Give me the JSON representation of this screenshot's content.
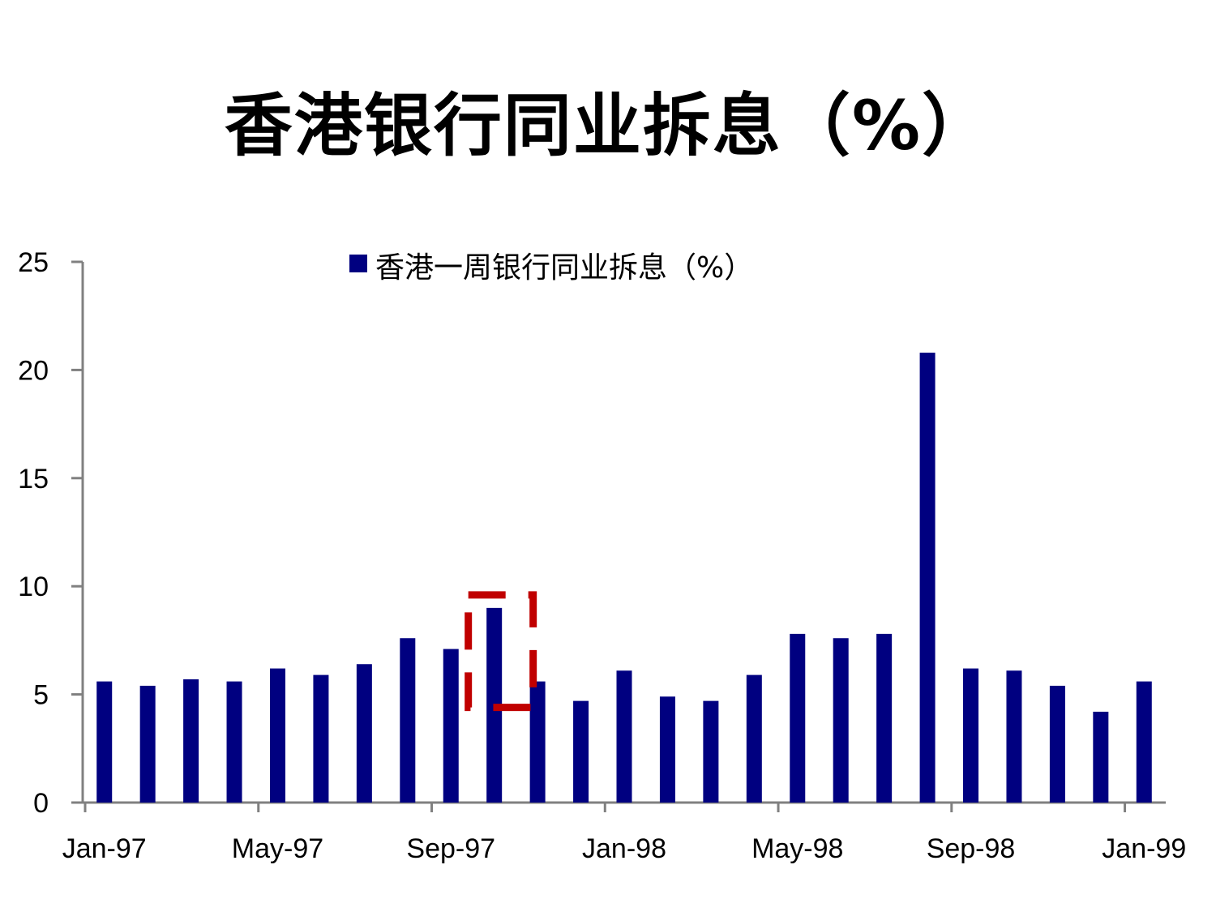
{
  "title": "香港银行同业拆息（%）",
  "chart_data": {
    "type": "bar",
    "title": "香港银行同业拆息（%）",
    "series": [
      {
        "name": "香港一周银行同业拆息（%）",
        "color": "#000080",
        "values": [
          5.6,
          5.4,
          5.7,
          5.6,
          6.2,
          5.9,
          6.4,
          7.6,
          7.1,
          9.0,
          5.6,
          4.7,
          6.1,
          4.9,
          4.7,
          5.9,
          7.8,
          7.6,
          7.8,
          20.8,
          6.2,
          6.1,
          5.4,
          4.2,
          5.6
        ]
      }
    ],
    "categories": [
      "Jan-97",
      "Feb-97",
      "Mar-97",
      "Apr-97",
      "May-97",
      "Jun-97",
      "Jul-97",
      "Aug-97",
      "Sep-97",
      "Oct-97",
      "Nov-97",
      "Dec-97",
      "Jan-98",
      "Feb-98",
      "Mar-98",
      "Apr-98",
      "May-98",
      "Jun-98",
      "Jul-98",
      "Aug-98",
      "Sep-98",
      "Oct-98",
      "Nov-98",
      "Dec-98",
      "Jan-99"
    ],
    "x_tick_labels": [
      "Jan-97",
      "May-97",
      "Sep-97",
      "Jan-98",
      "May-98",
      "Sep-98",
      "Jan-99"
    ],
    "y_ticks": [
      "0",
      "5",
      "10",
      "15",
      "20",
      "25"
    ],
    "ylim": [
      0,
      25
    ],
    "xlabel": "",
    "ylabel": "",
    "grid": false,
    "legend": "top-center",
    "axis_color": "#808080",
    "annotation": {
      "type": "dashed-rectangle",
      "color": "#C00000",
      "highlight_category": "Oct-97"
    }
  }
}
